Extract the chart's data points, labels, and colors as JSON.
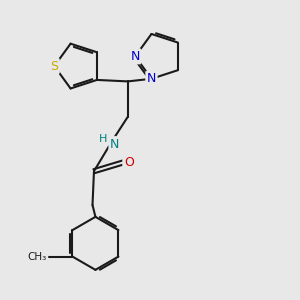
{
  "bg_color": "#e8e8e8",
  "bond_color": "#1a1a1a",
  "bond_width": 1.5,
  "S_color": "#ccaa00",
  "N_color": "#0000cc",
  "O_color": "#cc0000",
  "NH_color": "#008080",
  "figsize": [
    3.0,
    3.0
  ],
  "dpi": 100,
  "xlim": [
    0,
    10
  ],
  "ylim": [
    0,
    10
  ]
}
